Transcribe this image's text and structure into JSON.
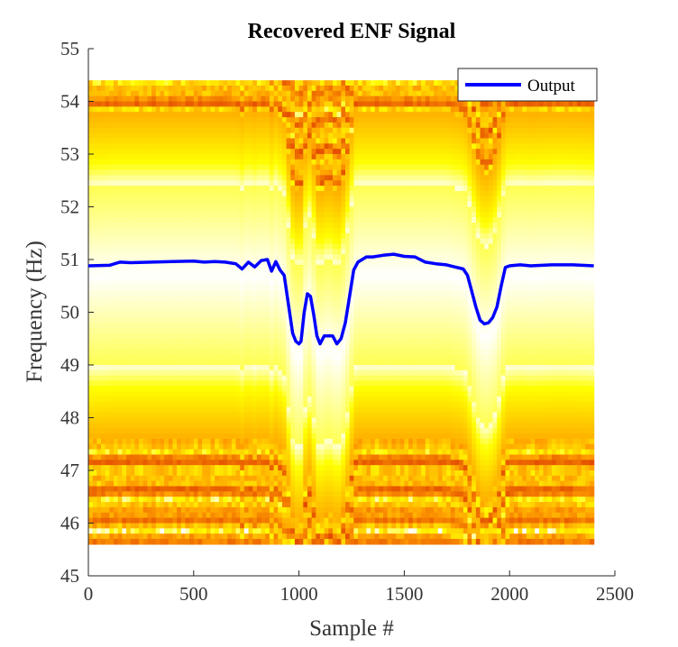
{
  "chart_data": {
    "type": "line",
    "title": "Recovered ENF Signal",
    "xlabel": "Sample #",
    "ylabel": "Frequency (Hz)",
    "xlim": [
      0,
      2500
    ],
    "ylim": [
      45,
      55
    ],
    "xticks": [
      "0",
      "500",
      "1000",
      "1500",
      "2000",
      "2500"
    ],
    "yticks": [
      "45",
      "46",
      "47",
      "48",
      "49",
      "50",
      "51",
      "52",
      "53",
      "54",
      "55"
    ],
    "xtick_values": [
      0,
      500,
      1000,
      1500,
      2000,
      2500
    ],
    "ytick_values": [
      45,
      46,
      47,
      48,
      49,
      50,
      51,
      52,
      53,
      54,
      55
    ],
    "background": {
      "type": "heatmap",
      "x_range": [
        0,
        2400
      ],
      "y_range": [
        45.6,
        54.4
      ],
      "colormap": "hot"
    },
    "legend": {
      "position": "top-right",
      "entries": [
        "Output"
      ]
    },
    "series": [
      {
        "name": "Output",
        "color": "#0000ff",
        "x": [
          0,
          100,
          150,
          200,
          300,
          400,
          500,
          550,
          600,
          650,
          700,
          730,
          760,
          790,
          820,
          850,
          870,
          890,
          910,
          930,
          950,
          970,
          985,
          1000,
          1010,
          1025,
          1040,
          1055,
          1070,
          1085,
          1100,
          1120,
          1140,
          1160,
          1180,
          1200,
          1220,
          1240,
          1260,
          1280,
          1300,
          1320,
          1350,
          1400,
          1450,
          1500,
          1550,
          1600,
          1650,
          1700,
          1750,
          1780,
          1800,
          1820,
          1840,
          1860,
          1880,
          1900,
          1920,
          1940,
          1960,
          1980,
          2000,
          2050,
          2100,
          2200,
          2300,
          2400
        ],
        "y": [
          50.88,
          50.89,
          50.95,
          50.94,
          50.95,
          50.96,
          50.97,
          50.95,
          50.96,
          50.95,
          50.92,
          50.82,
          50.95,
          50.86,
          50.98,
          51.0,
          50.78,
          50.96,
          50.8,
          50.7,
          50.15,
          49.6,
          49.45,
          49.4,
          49.45,
          50.0,
          50.35,
          50.3,
          49.95,
          49.55,
          49.4,
          49.55,
          49.55,
          49.55,
          49.4,
          49.5,
          49.8,
          50.3,
          50.8,
          50.95,
          51.0,
          51.05,
          51.05,
          51.08,
          51.1,
          51.06,
          51.05,
          50.95,
          50.92,
          50.9,
          50.85,
          50.82,
          50.7,
          50.4,
          50.1,
          49.85,
          49.78,
          49.8,
          49.9,
          50.1,
          50.5,
          50.85,
          50.88,
          50.9,
          50.88,
          50.9,
          50.9,
          50.88
        ]
      }
    ]
  }
}
